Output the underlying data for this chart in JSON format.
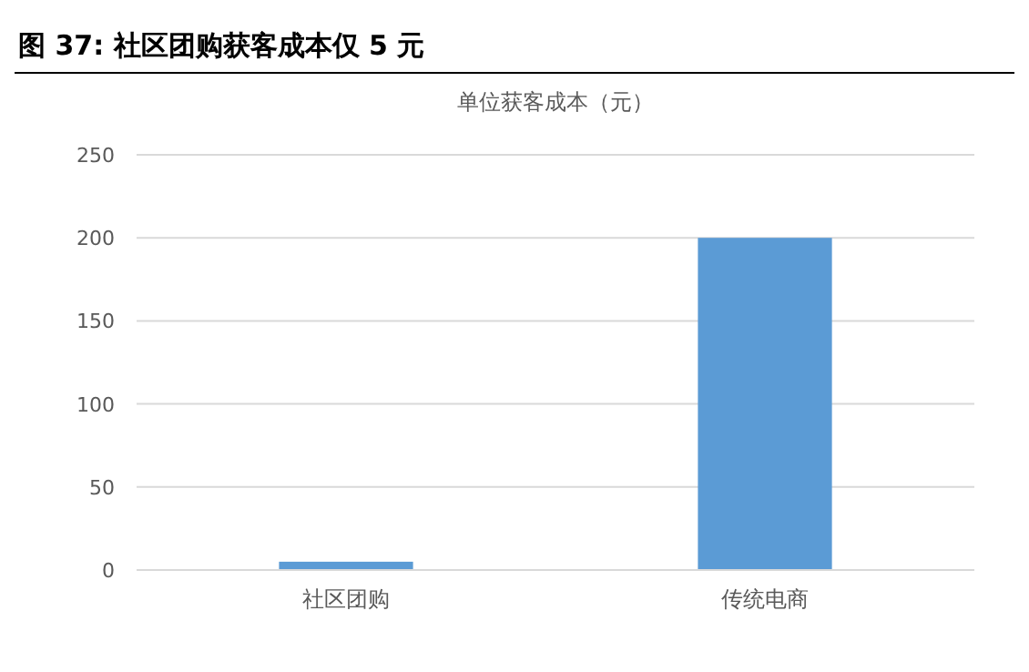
{
  "chart_data": {
    "type": "bar",
    "title": "图 37: 社区团购获客成本仅 5 元",
    "subtitle": "单位获客成本（元）",
    "categories": [
      "社区团购",
      "传统电商"
    ],
    "values": [
      5,
      200
    ],
    "color": "#5b9bd5",
    "ylim": [
      0,
      250
    ],
    "yticks": [
      0,
      50,
      100,
      150,
      200,
      250
    ],
    "grid": "y"
  }
}
